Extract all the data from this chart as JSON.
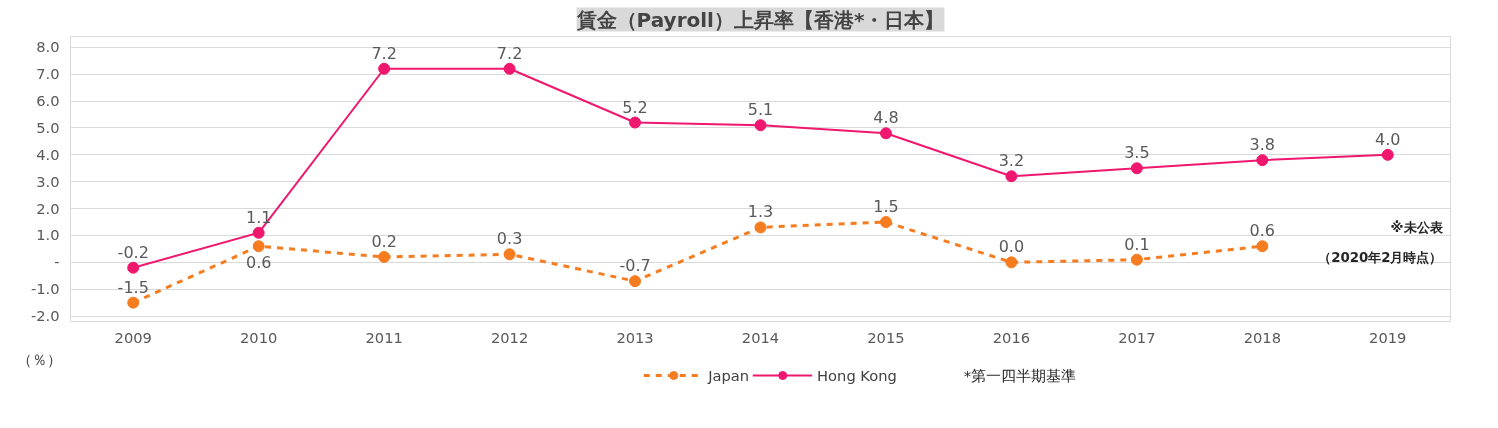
{
  "chart_data": {
    "type": "line",
    "title": "賃金（Payroll）上昇率【香港*・日本】",
    "ylabel": "（％）",
    "categories": [
      "2009",
      "2010",
      "2011",
      "2012",
      "2013",
      "2014",
      "2015",
      "2016",
      "2017",
      "2018",
      "2019"
    ],
    "series": [
      {
        "name": "Japan",
        "color": "#f57c1f",
        "line_style": "dashed",
        "values": [
          -1.5,
          0.6,
          0.2,
          0.3,
          -0.7,
          1.3,
          1.5,
          0.0,
          0.1,
          0.6,
          null
        ],
        "value_labels": [
          "-1.5",
          "0.6",
          "0.2",
          "0.3",
          "-0.7",
          "1.3",
          "1.5",
          "0.0",
          "0.1",
          "0.6",
          null
        ]
      },
      {
        "name": "Hong Kong",
        "color": "#f0176f",
        "line_style": "solid",
        "values": [
          -0.2,
          1.1,
          7.2,
          7.2,
          5.2,
          5.1,
          4.8,
          3.2,
          3.5,
          3.8,
          4.0
        ],
        "value_labels": [
          "-0.2",
          "1.1",
          "7.2",
          "7.2",
          "5.2",
          "5.1",
          "4.8",
          "3.2",
          "3.5",
          "3.8",
          "4.0"
        ]
      }
    ],
    "ylim": [
      -2.2,
      8.4
    ],
    "yticks": [
      {
        "value": -2,
        "label": "-2.0"
      },
      {
        "value": -1,
        "label": "-1.0"
      },
      {
        "value": 0,
        "label": "-"
      },
      {
        "value": 1,
        "label": "1.0"
      },
      {
        "value": 2,
        "label": "2.0"
      },
      {
        "value": 3,
        "label": "3.0"
      },
      {
        "value": 4,
        "label": "4.0"
      },
      {
        "value": 5,
        "label": "5.0"
      },
      {
        "value": 6,
        "label": "6.0"
      },
      {
        "value": 7,
        "label": "7.0"
      },
      {
        "value": 8,
        "label": "8.0"
      }
    ],
    "grid": "y",
    "legend": "bottom",
    "marker": "circle",
    "annotations": [
      "※未公表",
      "（2020年2月時点）",
      "*第一四半期基準"
    ]
  }
}
